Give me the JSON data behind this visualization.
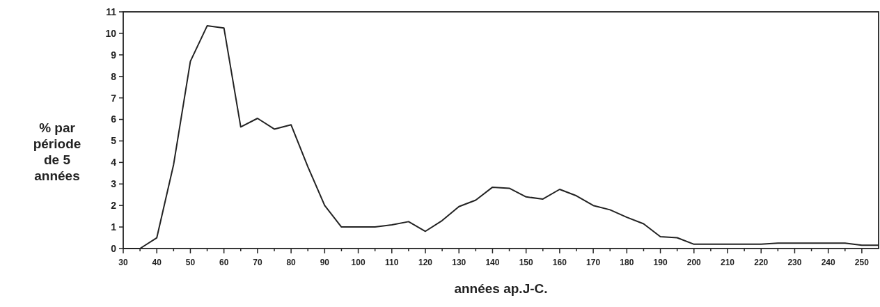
{
  "chart_data": {
    "type": "line",
    "xlabel": "années ap.J-C.",
    "ylabel": "% par période de 5 années",
    "x": [
      30,
      35,
      40,
      45,
      50,
      55,
      60,
      65,
      70,
      75,
      80,
      85,
      90,
      95,
      100,
      105,
      110,
      115,
      120,
      125,
      130,
      135,
      140,
      145,
      150,
      155,
      160,
      165,
      170,
      175,
      180,
      185,
      190,
      195,
      200,
      205,
      210,
      215,
      220,
      225,
      230,
      235,
      240,
      245,
      250,
      255
    ],
    "series": [
      {
        "color": "#222222",
        "values": [
          0,
          0,
          0.5,
          3.9,
          8.7,
          10.35,
          10.25,
          5.65,
          6.05,
          5.55,
          5.75,
          3.8,
          2.0,
          1.0,
          1.0,
          1.0,
          1.1,
          1.25,
          0.8,
          1.3,
          1.95,
          2.25,
          2.85,
          2.8,
          2.4,
          2.3,
          2.75,
          2.45,
          2.0,
          1.8,
          1.45,
          1.15,
          0.55,
          0.5,
          0.2,
          0.2,
          0.2,
          0.2,
          0.2,
          0.25,
          0.25,
          0.25,
          0.25,
          0.25,
          0.15,
          0.15
        ]
      }
    ],
    "xlim": [
      30,
      255
    ],
    "xticks": [
      30,
      {
        "value": 35,
        "label": null
      },
      40,
      {
        "value": 45,
        "label": null
      },
      50,
      {
        "value": 55,
        "label": null
      },
      60,
      {
        "value": 65,
        "label": null
      },
      70,
      {
        "value": 75,
        "label": null
      },
      80,
      {
        "value": 85,
        "label": null
      },
      90,
      {
        "value": 95,
        "label": null
      },
      100,
      {
        "value": 105,
        "label": null
      },
      110,
      {
        "value": 115,
        "label": null
      },
      120,
      {
        "value": 125,
        "label": null
      },
      130,
      {
        "value": 135,
        "label": null
      },
      140,
      {
        "value": 145,
        "label": null
      },
      150,
      {
        "value": 155,
        "label": null
      },
      160,
      {
        "value": 165,
        "label": null
      },
      170,
      {
        "value": 175,
        "label": null
      },
      180,
      {
        "value": 185,
        "label": null
      },
      190,
      {
        "value": 195,
        "label": null
      },
      200,
      {
        "value": 205,
        "label": null
      },
      210,
      {
        "value": 215,
        "label": null
      },
      220,
      {
        "value": 225,
        "label": null
      },
      230,
      {
        "value": 235,
        "label": null
      },
      240,
      {
        "value": 245,
        "label": null
      },
      250
    ],
    "ylim": [
      0,
      11
    ],
    "yticks": [
      0,
      1,
      2,
      3,
      4,
      5,
      6,
      7,
      8,
      9,
      10,
      11
    ],
    "grid": false,
    "marker": "none",
    "line_style": "solid"
  }
}
